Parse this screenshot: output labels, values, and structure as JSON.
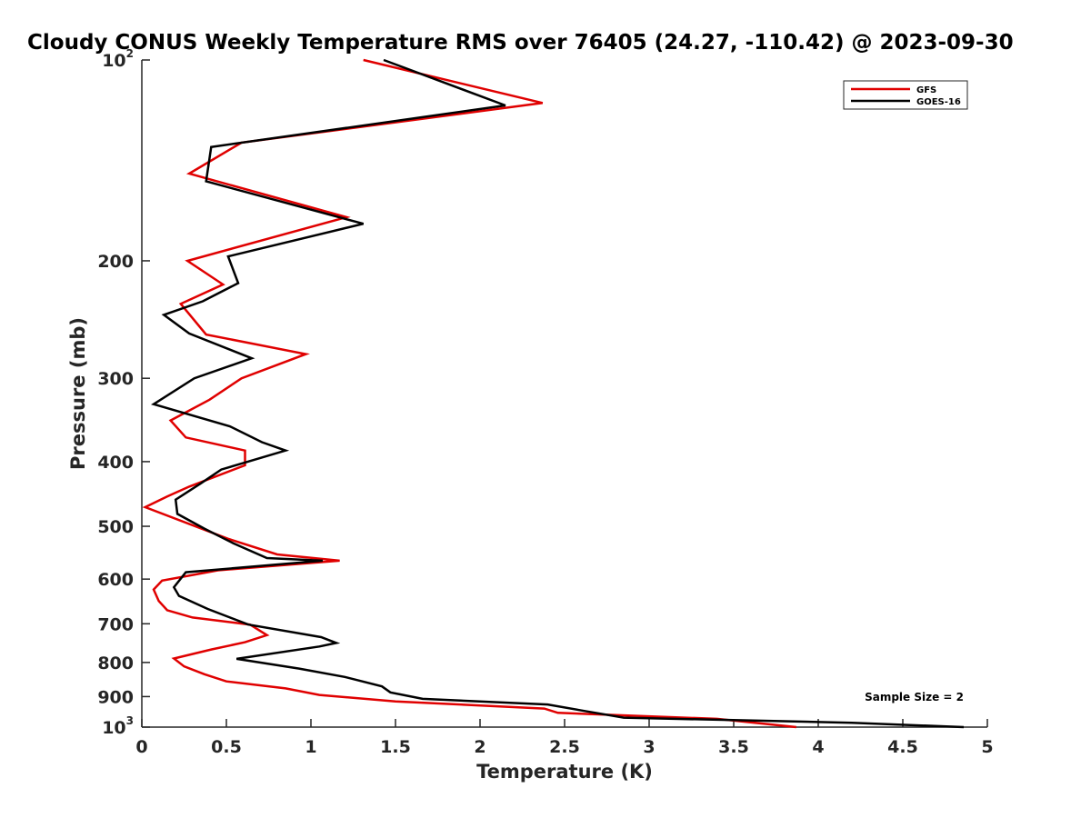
{
  "chart_data": {
    "type": "line",
    "title": "Cloudy CONUS Weekly Temperature RMS over 76405 (24.27, -110.42) @ 2023-09-30",
    "xlabel": "Temperature (K)",
    "ylabel": "Pressure (mb)",
    "xlim": [
      0,
      5
    ],
    "ylim": [
      100,
      1000
    ],
    "y_scale": "log",
    "y_reversed": true,
    "grid": false,
    "legend_position": "top-right",
    "x_ticks": [
      "0",
      "0.5",
      "1",
      "1.5",
      "2",
      "2.5",
      "3",
      "3.5",
      "4",
      "4.5",
      "5"
    ],
    "y_ticks": [
      {
        "value": 100,
        "label": "10",
        "sup": "2"
      },
      {
        "value": 200,
        "label": "200",
        "sup": ""
      },
      {
        "value": 300,
        "label": "300",
        "sup": ""
      },
      {
        "value": 400,
        "label": "400",
        "sup": ""
      },
      {
        "value": 500,
        "label": "500",
        "sup": ""
      },
      {
        "value": 600,
        "label": "600",
        "sup": ""
      },
      {
        "value": 700,
        "label": "700",
        "sup": ""
      },
      {
        "value": 800,
        "label": "800",
        "sup": ""
      },
      {
        "value": 900,
        "label": "900",
        "sup": ""
      },
      {
        "value": 1000,
        "label": "10",
        "sup": "3"
      }
    ],
    "series": [
      {
        "name": "GFS",
        "color": "#e00000",
        "points": [
          [
            1.31,
            100
          ],
          [
            2.37,
            116
          ],
          [
            0.59,
            133
          ],
          [
            0.28,
            148
          ],
          [
            1.21,
            172
          ],
          [
            0.27,
            200
          ],
          [
            0.48,
            217
          ],
          [
            0.23,
            232
          ],
          [
            0.38,
            258
          ],
          [
            0.97,
            276
          ],
          [
            0.59,
            300
          ],
          [
            0.4,
            323
          ],
          [
            0.17,
            347
          ],
          [
            0.26,
            368
          ],
          [
            0.61,
            385
          ],
          [
            0.61,
            405
          ],
          [
            0.28,
            436
          ],
          [
            0.15,
            451
          ],
          [
            0.02,
            468
          ],
          [
            0.51,
            522
          ],
          [
            0.8,
            551
          ],
          [
            1.17,
            563
          ],
          [
            0.45,
            582
          ],
          [
            0.12,
            603
          ],
          [
            0.07,
            622
          ],
          [
            0.1,
            647
          ],
          [
            0.15,
            668
          ],
          [
            0.3,
            685
          ],
          [
            0.64,
            702
          ],
          [
            0.74,
            728
          ],
          [
            0.61,
            746
          ],
          [
            0.41,
            765
          ],
          [
            0.19,
            789
          ],
          [
            0.25,
            811
          ],
          [
            0.37,
            833
          ],
          [
            0.5,
            854
          ],
          [
            0.85,
            875
          ],
          [
            1.05,
            895
          ],
          [
            1.5,
            915
          ],
          [
            2.38,
            938
          ],
          [
            2.46,
            952
          ],
          [
            3.4,
            972
          ],
          [
            3.87,
            1000
          ]
        ]
      },
      {
        "name": "GOES-16",
        "color": "#000000",
        "points": [
          [
            1.43,
            100
          ],
          [
            2.15,
            117
          ],
          [
            0.41,
            135
          ],
          [
            0.38,
            152
          ],
          [
            1.31,
            176
          ],
          [
            0.51,
            197
          ],
          [
            0.57,
            216
          ],
          [
            0.36,
            230
          ],
          [
            0.13,
            241
          ],
          [
            0.28,
            257
          ],
          [
            0.65,
            280
          ],
          [
            0.31,
            300
          ],
          [
            0.07,
            328
          ],
          [
            0.52,
            354
          ],
          [
            0.71,
            374
          ],
          [
            0.85,
            385
          ],
          [
            0.47,
            411
          ],
          [
            0.35,
            431
          ],
          [
            0.2,
            456
          ],
          [
            0.21,
            479
          ],
          [
            0.37,
            504
          ],
          [
            0.54,
            530
          ],
          [
            0.74,
            558
          ],
          [
            1.07,
            563
          ],
          [
            0.26,
            586
          ],
          [
            0.19,
            617
          ],
          [
            0.22,
            636
          ],
          [
            0.39,
            665
          ],
          [
            0.63,
            702
          ],
          [
            1.06,
            733
          ],
          [
            1.15,
            748
          ],
          [
            1.05,
            757
          ],
          [
            0.56,
            790
          ],
          [
            0.93,
            817
          ],
          [
            1.2,
            841
          ],
          [
            1.42,
            869
          ],
          [
            1.47,
            887
          ],
          [
            1.66,
            907
          ],
          [
            2.4,
            925
          ],
          [
            2.62,
            946
          ],
          [
            2.85,
            968
          ],
          [
            4.2,
            985
          ],
          [
            4.86,
            1000
          ]
        ]
      }
    ],
    "annotations": [
      {
        "text": "Sample Size = 2"
      }
    ]
  }
}
